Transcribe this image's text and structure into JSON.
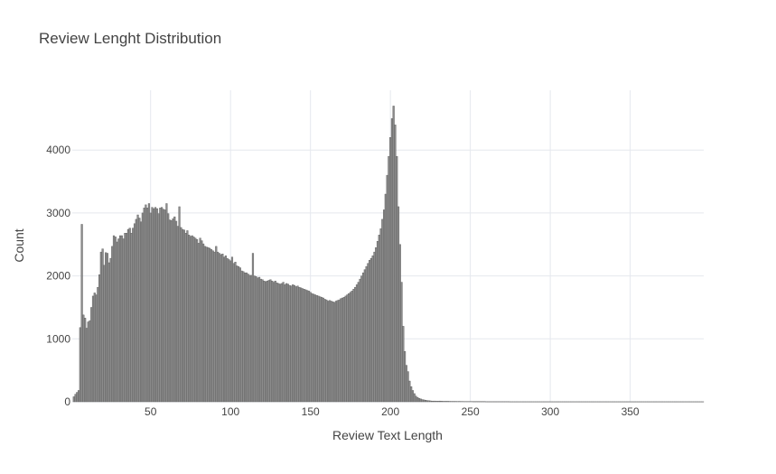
{
  "chart_data": {
    "type": "bar",
    "title": "Review Lenght Distribution",
    "xlabel": "Review Text Length",
    "ylabel": "Count",
    "xlim": [
      1,
      396
    ],
    "ylim": [
      0,
      4950
    ],
    "grid": true,
    "legend": "none",
    "x_ticks": [
      50,
      100,
      150,
      200,
      250,
      300,
      350
    ],
    "y_ticks": [
      0,
      1000,
      2000,
      3000,
      4000
    ],
    "bar_color": "#8c8c8c",
    "bar_edge_color": "#5a5a5a",
    "grid_color": "#e5e8ee",
    "x_start": 2,
    "bin_width": 1,
    "values": [
      80,
      120,
      150,
      180,
      1180,
      2820,
      1380,
      1330,
      1170,
      1270,
      1290,
      1500,
      1680,
      1730,
      1700,
      1820,
      2020,
      2380,
      2430,
      2170,
      2370,
      2360,
      2210,
      2280,
      2470,
      2640,
      2620,
      2540,
      2590,
      2640,
      2640,
      2590,
      2680,
      2680,
      2740,
      2760,
      2680,
      2760,
      2830,
      2900,
      2970,
      2920,
      2860,
      3000,
      3080,
      3130,
      3080,
      3150,
      3000,
      3090,
      3070,
      3090,
      3070,
      2990,
      3080,
      3090,
      3060,
      3050,
      3150,
      2990,
      2890,
      2880,
      2910,
      2940,
      2870,
      2790,
      3100,
      2770,
      2740,
      2730,
      2680,
      2720,
      2650,
      2630,
      2640,
      2620,
      2600,
      2580,
      2520,
      2600,
      2560,
      2510,
      2470,
      2460,
      2450,
      2440,
      2420,
      2400,
      2380,
      2470,
      2380,
      2360,
      2340,
      2350,
      2300,
      2320,
      2280,
      2260,
      2240,
      2300,
      2200,
      2220,
      2160,
      2150,
      2130,
      2080,
      2070,
      2050,
      2050,
      2030,
      2010,
      2010,
      2360,
      2000,
      1990,
      1970,
      1980,
      1950,
      1940,
      1920,
      1910,
      1920,
      1930,
      1940,
      1920,
      1900,
      1920,
      1890,
      1880,
      1870,
      1880,
      1900,
      1860,
      1880,
      1870,
      1850,
      1840,
      1860,
      1850,
      1830,
      1840,
      1820,
      1810,
      1800,
      1790,
      1780,
      1770,
      1760,
      1740,
      1720,
      1710,
      1700,
      1690,
      1680,
      1670,
      1660,
      1650,
      1630,
      1620,
      1600,
      1610,
      1600,
      1590,
      1580,
      1600,
      1610,
      1620,
      1640,
      1650,
      1660,
      1680,
      1700,
      1720,
      1740,
      1760,
      1790,
      1820,
      1860,
      1900,
      1950,
      2000,
      2050,
      2100,
      2150,
      2200,
      2250,
      2280,
      2320,
      2380,
      2450,
      2550,
      2650,
      2750,
      2900,
      3050,
      3300,
      3600,
      3900,
      4200,
      4500,
      4700,
      4400,
      3900,
      3100,
      2500,
      1900,
      1200,
      800,
      580,
      480,
      330,
      240,
      180,
      130,
      90,
      70,
      55,
      45,
      35,
      30,
      25,
      20,
      18,
      15,
      12,
      12,
      12,
      10,
      10,
      12,
      10,
      8,
      8,
      8,
      8,
      7,
      6,
      6,
      6,
      6,
      5,
      6,
      5,
      5,
      4,
      4,
      4,
      4,
      4,
      4,
      3,
      3,
      3,
      3,
      3,
      3,
      3,
      3,
      2,
      2,
      2,
      2,
      2,
      2,
      2,
      2,
      2,
      2,
      2,
      2,
      2,
      2,
      2,
      1,
      1,
      1,
      1,
      1,
      1,
      1,
      1,
      1,
      1,
      1,
      1,
      1,
      1,
      1,
      1,
      1,
      1,
      1,
      1,
      1,
      1,
      1,
      1,
      1,
      1,
      1,
      1,
      1,
      1,
      1,
      1,
      1,
      1,
      1,
      1,
      1,
      1,
      1,
      1,
      1,
      1,
      1,
      1,
      1,
      1,
      1,
      1,
      1,
      1,
      1,
      1,
      1,
      1,
      1,
      1,
      1,
      1,
      1,
      1,
      1,
      1,
      1,
      1,
      1,
      1,
      1,
      1,
      1,
      1,
      1,
      1,
      1,
      1,
      1,
      1,
      1,
      1,
      1,
      1,
      1,
      1,
      1,
      1,
      1,
      1,
      1,
      1,
      1,
      1,
      1,
      1,
      1,
      1,
      1,
      1,
      1,
      1,
      1,
      1,
      1,
      1,
      1,
      1,
      1,
      1,
      1,
      1,
      1,
      1,
      1,
      1,
      1,
      1,
      1,
      1,
      1,
      1,
      1,
      1,
      1,
      1,
      1,
      1,
      1,
      1,
      1,
      1,
      1,
      1
    ]
  }
}
